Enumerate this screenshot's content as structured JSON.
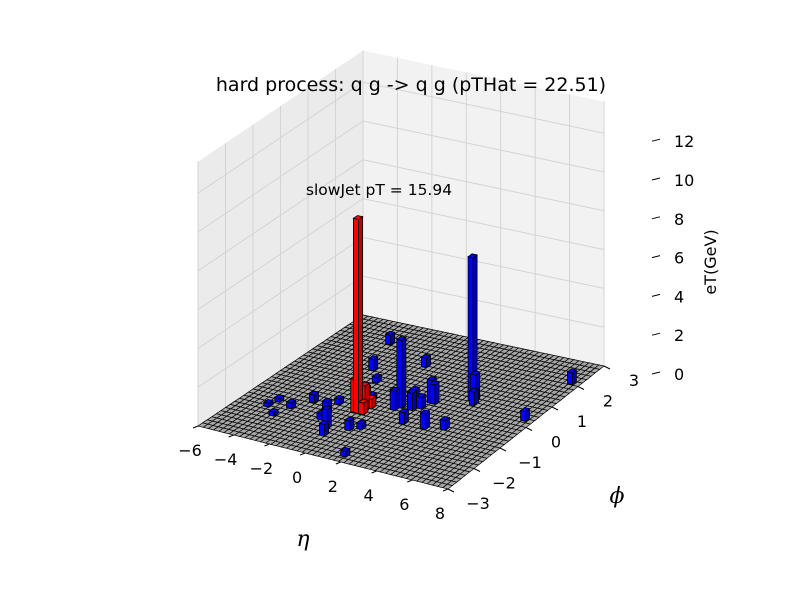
{
  "chart_data": {
    "type": "3d-bar",
    "title": "hard process: q g -> q g (pTHat = 22.51)",
    "annotation": "slowJet pT = 15.94",
    "xlabel": "η",
    "ylabel": "ϕ",
    "zlabel": "eT(GeV)",
    "x_ticks": [
      "−6",
      "−4",
      "−2",
      "0",
      "2",
      "4",
      "6",
      "8"
    ],
    "y_ticks": [
      "−3",
      "−2",
      "−1",
      "0",
      "1",
      "2",
      "3"
    ],
    "z_ticks": [
      "0",
      "2",
      "4",
      "6",
      "8",
      "10",
      "12"
    ],
    "xlim": [
      -6,
      8
    ],
    "ylim": [
      -3,
      3
    ],
    "zlim": [
      0,
      12
    ],
    "grid": true,
    "colors": {
      "jet_bar": "#ff0000",
      "other_bar": "#0000ff",
      "floor_cell": "#a8a8a8",
      "pane": "#f2f2f2",
      "pane_side": "#ebebeb",
      "gridline": "#d4d4d4"
    },
    "bars": [
      {
        "eta": -0.2,
        "phi": -0.9,
        "et": 10.0,
        "group": "jet"
      },
      {
        "eta": -0.35,
        "phi": -0.9,
        "et": 1.7,
        "group": "jet"
      },
      {
        "eta": -0.05,
        "phi": -0.75,
        "et": 1.3,
        "group": "jet"
      },
      {
        "eta": -0.2,
        "phi": -0.6,
        "et": 1.0,
        "group": "jet"
      },
      {
        "eta": 0.1,
        "phi": -0.9,
        "et": 0.6,
        "group": "jet"
      },
      {
        "eta": 0.1,
        "phi": -0.6,
        "et": 0.5,
        "group": "jet"
      },
      {
        "eta": 4.05,
        "phi": 0.6,
        "et": 7.4,
        "group": "other"
      },
      {
        "eta": 4.2,
        "phi": 0.6,
        "et": 1.4,
        "group": "other"
      },
      {
        "eta": 4.35,
        "phi": 0.45,
        "et": 0.7,
        "group": "other"
      },
      {
        "eta": 1.35,
        "phi": -0.3,
        "et": 3.5,
        "group": "other"
      },
      {
        "eta": 1.2,
        "phi": -0.45,
        "et": 1.0,
        "group": "other"
      },
      {
        "eta": 2.4,
        "phi": 0.15,
        "et": 1.2,
        "group": "other"
      },
      {
        "eta": 2.55,
        "phi": 0.15,
        "et": 1.0,
        "group": "other"
      },
      {
        "eta": 1.95,
        "phi": -0.3,
        "et": 0.9,
        "group": "other"
      },
      {
        "eta": 2.25,
        "phi": -0.15,
        "et": 0.6,
        "group": "other"
      },
      {
        "eta": 0.0,
        "phi": 1.5,
        "et": 0.5,
        "group": "other"
      },
      {
        "eta": 1.2,
        "phi": 0.3,
        "et": 0.3,
        "group": "other"
      },
      {
        "eta": 4.5,
        "phi": -0.75,
        "et": 0.5,
        "group": "other"
      },
      {
        "eta": 2.4,
        "phi": -0.9,
        "et": 0.6,
        "group": "other"
      },
      {
        "eta": 3.6,
        "phi": -0.9,
        "et": 0.8,
        "group": "other"
      },
      {
        "eta": 7.5,
        "phi": 2.1,
        "et": 0.6,
        "group": "other"
      },
      {
        "eta": 7.5,
        "phi": 0.3,
        "et": 0.5,
        "group": "other"
      },
      {
        "eta": -0.6,
        "phi": -1.8,
        "et": 1.0,
        "group": "other"
      },
      {
        "eta": -0.3,
        "phi": -2.1,
        "et": 0.6,
        "group": "other"
      },
      {
        "eta": 0.45,
        "phi": -1.65,
        "et": 0.5,
        "group": "other"
      },
      {
        "eta": 1.8,
        "phi": -2.7,
        "et": 0.3,
        "group": "other"
      },
      {
        "eta": 0.9,
        "phi": -1.5,
        "et": 0.3,
        "group": "other"
      },
      {
        "eta": -1.5,
        "phi": -1.2,
        "et": 0.6,
        "group": "other"
      },
      {
        "eta": -1.35,
        "phi": -1.5,
        "et": 0.3,
        "group": "other"
      },
      {
        "eta": -2.7,
        "phi": -0.9,
        "et": 0.4,
        "group": "other"
      },
      {
        "eta": -3.3,
        "phi": -1.35,
        "et": 0.3,
        "group": "other"
      },
      {
        "eta": -4.2,
        "phi": -1.2,
        "et": 0.2,
        "group": "other"
      },
      {
        "eta": -4.35,
        "phi": -1.5,
        "et": 0.2,
        "group": "other"
      },
      {
        "eta": -3.6,
        "phi": -1.8,
        "et": 0.2,
        "group": "other"
      },
      {
        "eta": -2.1,
        "phi": 0.9,
        "et": 0.6,
        "group": "other"
      },
      {
        "eta": -1.2,
        "phi": 0.45,
        "et": 0.3,
        "group": "other"
      },
      {
        "eta": -0.3,
        "phi": -0.3,
        "et": 0.3,
        "group": "other"
      },
      {
        "eta": -3.0,
        "phi": 2.1,
        "et": 0.5,
        "group": "other"
      },
      {
        "eta": -1.5,
        "phi": -0.75,
        "et": 0.3,
        "group": "other"
      }
    ]
  }
}
